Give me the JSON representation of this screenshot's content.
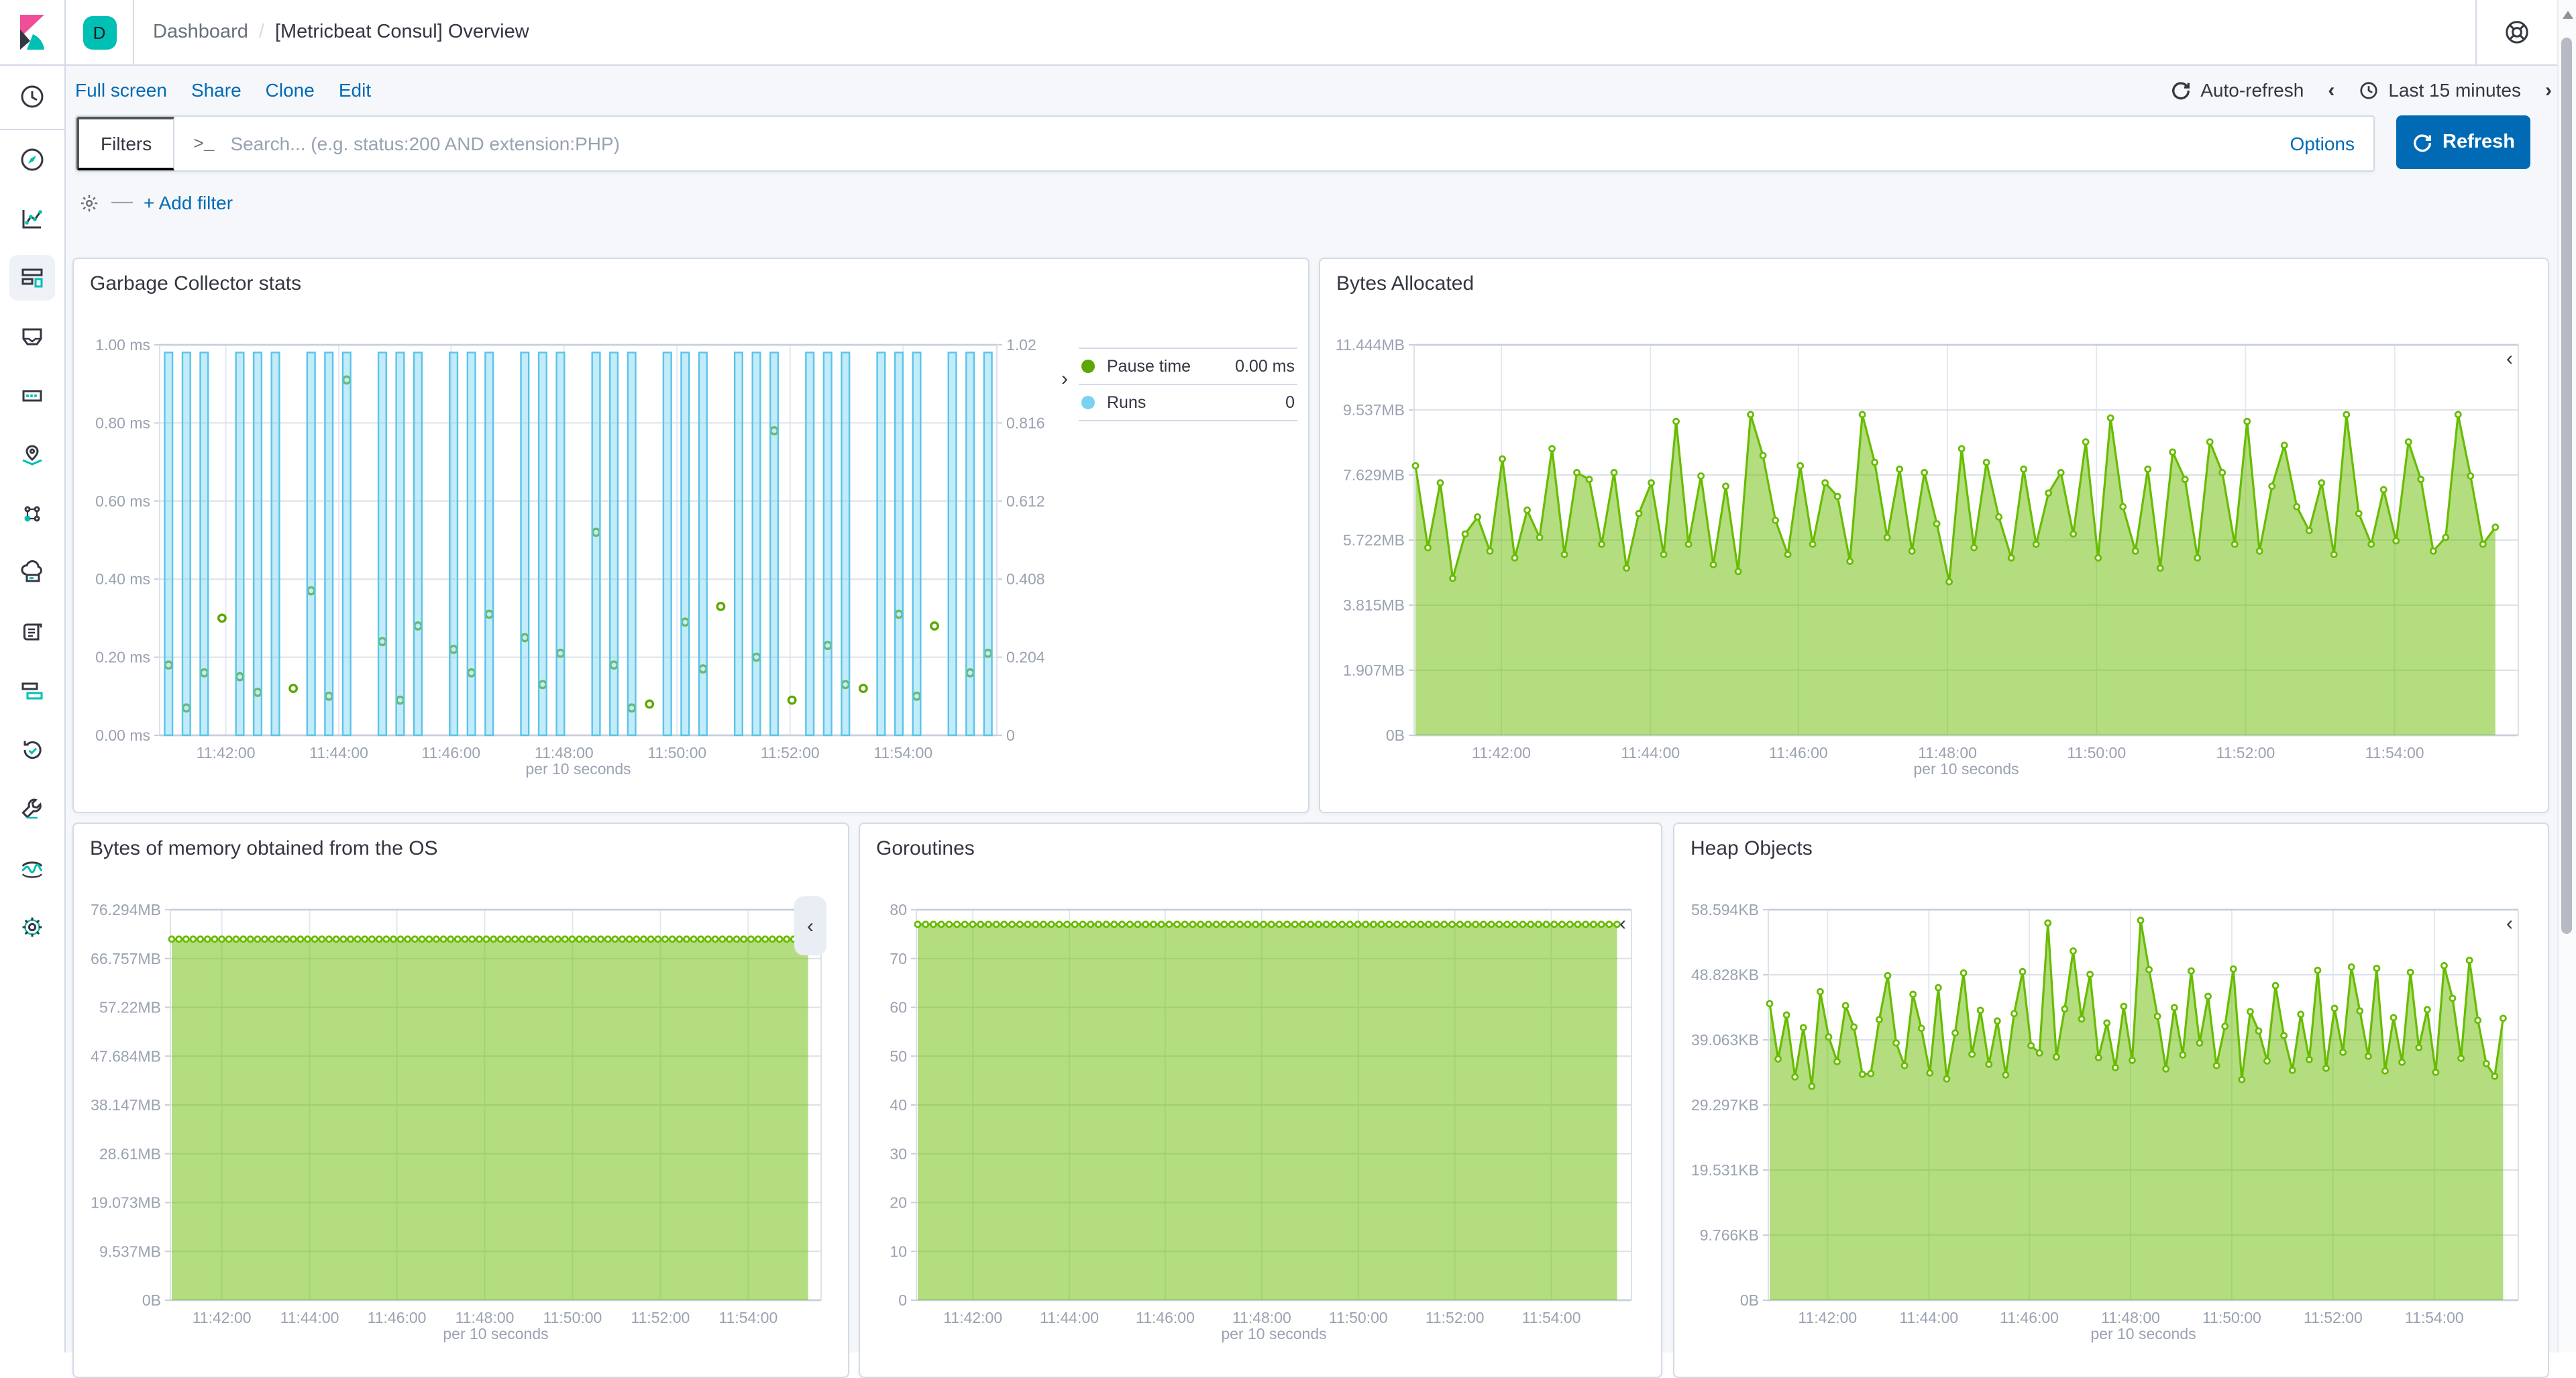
{
  "topbar": {
    "badge": "D",
    "breadcrumb": "Dashboard",
    "separator": "/",
    "title": "[Metricbeat Consul] Overview"
  },
  "sidebar": {
    "active": "dashboard",
    "items": [
      "recently-viewed",
      "discover",
      "visualize",
      "dashboard",
      "canvas",
      "graph",
      "maps",
      "machine-learning",
      "infrastructure",
      "logs",
      "apm",
      "uptime",
      "dev-tools",
      "stack-monitoring",
      "management"
    ]
  },
  "toolbar": {
    "links": {
      "full_screen": "Full screen",
      "share": "Share",
      "clone": "Clone",
      "edit": "Edit"
    },
    "auto_refresh": "Auto-refresh",
    "time_range": "Last 15 minutes"
  },
  "filter_bar": {
    "filters_label": "Filters",
    "prompt": ">_",
    "search_placeholder": "Search... (e.g. status:200 AND extension:PHP)",
    "options_label": "Options",
    "refresh_label": "Refresh",
    "add_filter_label": "+ Add filter"
  },
  "icons": {
    "chevron_left": "‹",
    "chevron_right": "›",
    "dash": "—"
  },
  "colors": {
    "primary": "#006BB4",
    "badge": "#00BFB3",
    "green_line": "#68BC00",
    "green_fill": "rgba(104,188,0,0.5)",
    "green_dot": "#5CA700",
    "blue_bar": "#59C5E8",
    "blue_bar_fill": "rgba(121,210,242,0.45)",
    "blue_dot": "#79D2F2"
  },
  "chart_data": [
    {
      "panel": "garbage-collector-stats",
      "title": "Garbage Collector stats",
      "type": "bar",
      "x_axis_title": "per 10 seconds",
      "pad": [
        56,
        46
      ],
      "x_ticks": [
        {
          "label": "11:42:00",
          "f": 0.079
        },
        {
          "label": "11:44:00",
          "f": 0.214
        },
        {
          "label": "11:46:00",
          "f": 0.348
        },
        {
          "label": "11:48:00",
          "f": 0.483
        },
        {
          "label": "11:50:00",
          "f": 0.618
        },
        {
          "label": "11:52:00",
          "f": 0.753
        },
        {
          "label": "11:54:00",
          "f": 0.888
        }
      ],
      "y_ticks_left": [
        "1.00 ms",
        "0.80 ms",
        "0.60 ms",
        "0.40 ms",
        "0.20 ms",
        "0.00 ms"
      ],
      "y_ticks_right": [
        "1.02",
        "0.816",
        "0.612",
        "0.408",
        "0.204",
        "0"
      ],
      "left_max": 1.0,
      "right_max": 1.02,
      "legend_position": "right",
      "series": [
        {
          "name": "Pause time",
          "type": "scatter",
          "axis": "left",
          "unit": "ms",
          "color": "#5CA700",
          "legend_value": "0.00 ms",
          "values": [
            0.18,
            0.07,
            0.16,
            0.3,
            0.15,
            0.11,
            null,
            0.12,
            0.37,
            0.1,
            0.91,
            null,
            0.24,
            0.09,
            0.28,
            null,
            0.22,
            0.16,
            0.31,
            null,
            0.25,
            0.13,
            0.21,
            null,
            0.52,
            0.18,
            0.07,
            0.08,
            null,
            0.29,
            0.17,
            0.33,
            null,
            0.2,
            0.78,
            0.09,
            null,
            0.23,
            0.13,
            0.12,
            null,
            0.31,
            0.1,
            0.28,
            null,
            0.16,
            0.21
          ]
        },
        {
          "name": "Runs",
          "type": "bar",
          "axis": "right",
          "color": "#59C5E8",
          "fill": "rgba(121,210,242,0.45)",
          "legend_value": "0",
          "value": 1,
          "present": [
            1,
            1,
            1,
            0,
            1,
            1,
            1,
            0,
            1,
            1,
            1,
            0,
            1,
            1,
            1,
            0,
            1,
            1,
            1,
            0,
            1,
            1,
            1,
            0,
            1,
            1,
            1,
            0,
            1,
            1,
            1,
            0,
            1,
            1,
            1,
            0,
            1,
            1,
            1,
            0,
            1,
            1,
            1,
            0,
            1,
            1,
            1
          ]
        }
      ]
    },
    {
      "panel": "bytes-allocated",
      "title": "Bytes Allocated",
      "type": "area",
      "x_axis_title": "per 10 seconds",
      "pad": [
        62,
        14
      ],
      "x_ticks": [
        {
          "label": "11:42:00",
          "f": 0.079
        },
        {
          "label": "11:44:00",
          "f": 0.214
        },
        {
          "label": "11:46:00",
          "f": 0.348
        },
        {
          "label": "11:48:00",
          "f": 0.483
        },
        {
          "label": "11:50:00",
          "f": 0.618
        },
        {
          "label": "11:52:00",
          "f": 0.753
        },
        {
          "label": "11:54:00",
          "f": 0.888
        }
      ],
      "y_ticks_left": [
        "11.444MB",
        "9.537MB",
        "7.629MB",
        "5.722MB",
        "3.815MB",
        "1.907MB",
        "0B"
      ],
      "y_max": 11.444,
      "unit": "MB",
      "series": [
        {
          "name": "Bytes Allocated",
          "type": "area",
          "color": "#68BC00",
          "fill": "rgba(104,188,0,0.5)",
          "values": [
            7.9,
            5.5,
            7.4,
            4.6,
            5.9,
            6.4,
            5.4,
            8.1,
            5.2,
            6.6,
            5.8,
            8.4,
            5.3,
            7.7,
            7.5,
            5.6,
            7.7,
            4.9,
            6.5,
            7.4,
            5.3,
            9.2,
            5.6,
            7.6,
            5.0,
            7.3,
            4.8,
            9.4,
            8.2,
            6.3,
            5.3,
            7.9,
            5.6,
            7.4,
            7.0,
            5.1,
            9.4,
            8.0,
            5.8,
            7.8,
            5.4,
            7.7,
            6.2,
            4.5,
            8.4,
            5.5,
            8.0,
            6.4,
            5.2,
            7.8,
            5.6,
            7.1,
            7.7,
            5.9,
            8.6,
            5.2,
            9.3,
            6.7,
            5.4,
            7.8,
            4.9,
            8.3,
            7.5,
            5.2,
            8.6,
            7.7,
            5.6,
            9.2,
            5.4,
            7.3,
            8.5,
            6.7,
            6.0,
            7.4,
            5.3,
            9.4,
            6.5,
            5.6,
            7.2,
            5.7,
            8.6,
            7.5,
            5.4,
            5.8,
            9.4,
            7.6,
            5.6,
            6.1
          ]
        }
      ]
    },
    {
      "panel": "bytes-of-memory-obtained-from-the-os",
      "title": "Bytes of memory obtained from the OS",
      "type": "area",
      "x_axis_title": "per 10 seconds",
      "pad": [
        64,
        12
      ],
      "x_ticks": [
        {
          "label": "11:42:00",
          "f": 0.079
        },
        {
          "label": "11:44:00",
          "f": 0.214
        },
        {
          "label": "11:46:00",
          "f": 0.348
        },
        {
          "label": "11:48:00",
          "f": 0.483
        },
        {
          "label": "11:50:00",
          "f": 0.618
        },
        {
          "label": "11:52:00",
          "f": 0.753
        },
        {
          "label": "11:54:00",
          "f": 0.888
        }
      ],
      "y_ticks_left": [
        "76.294MB",
        "66.757MB",
        "57.22MB",
        "47.684MB",
        "38.147MB",
        "28.61MB",
        "19.073MB",
        "9.537MB",
        "0B"
      ],
      "y_max": 76.294,
      "unit": "MB",
      "series": [
        {
          "name": "Bytes of memory obtained from the OS",
          "type": "area",
          "color": "#68BC00",
          "fill": "rgba(104,188,0,0.5)",
          "value": 70.55,
          "count": 90
        }
      ]
    },
    {
      "panel": "goroutines",
      "title": "Goroutines",
      "type": "area",
      "x_axis_title": "per 10 seconds",
      "pad": [
        34,
        14
      ],
      "x_ticks": [
        {
          "label": "11:42:00",
          "f": 0.079
        },
        {
          "label": "11:44:00",
          "f": 0.214
        },
        {
          "label": "11:46:00",
          "f": 0.348
        },
        {
          "label": "11:48:00",
          "f": 0.483
        },
        {
          "label": "11:50:00",
          "f": 0.618
        },
        {
          "label": "11:52:00",
          "f": 0.753
        },
        {
          "label": "11:54:00",
          "f": 0.888
        }
      ],
      "y_ticks_left": [
        "80",
        "70",
        "60",
        "50",
        "40",
        "30",
        "20",
        "10",
        "0"
      ],
      "y_max": 80,
      "series": [
        {
          "name": "Goroutines",
          "type": "area",
          "color": "#68BC00",
          "fill": "rgba(104,188,0,0.5)",
          "value": 77,
          "count": 90
        }
      ]
    },
    {
      "panel": "heap-objects",
      "title": "Heap Objects",
      "type": "area",
      "x_axis_title": "per 10 seconds",
      "pad": [
        62,
        14
      ],
      "x_ticks": [
        {
          "label": "11:42:00",
          "f": 0.079
        },
        {
          "label": "11:44:00",
          "f": 0.214
        },
        {
          "label": "11:46:00",
          "f": 0.348
        },
        {
          "label": "11:48:00",
          "f": 0.483
        },
        {
          "label": "11:50:00",
          "f": 0.618
        },
        {
          "label": "11:52:00",
          "f": 0.753
        },
        {
          "label": "11:54:00",
          "f": 0.888
        }
      ],
      "y_ticks_left": [
        "58.594KB",
        "48.828KB",
        "39.063KB",
        "29.297KB",
        "19.531KB",
        "9.766KB",
        "0B"
      ],
      "y_max": 58.594,
      "unit": "KB",
      "series": [
        {
          "name": "Heap Objects",
          "type": "area",
          "color": "#68BC00",
          "fill": "rgba(104,188,0,0.5)",
          "values": [
            44.5,
            36.2,
            42.8,
            33.5,
            40.9,
            32.1,
            46.3,
            39.5,
            35.8,
            44.2,
            41.0,
            33.9,
            34.0,
            42.1,
            48.7,
            38.6,
            35.2,
            45.9,
            40.8,
            34.1,
            46.9,
            33.2,
            40.1,
            49.1,
            36.9,
            43.5,
            35.4,
            41.9,
            33.8,
            43.0,
            49.3,
            38.2,
            37.1,
            56.6,
            36.5,
            43.7,
            52.4,
            42.2,
            48.9,
            36.4,
            41.6,
            34.9,
            44.1,
            36.0,
            57.0,
            49.6,
            42.6,
            34.7,
            43.9,
            36.8,
            49.4,
            38.6,
            45.6,
            35.2,
            41.1,
            49.7,
            33.1,
            43.3,
            40.4,
            35.9,
            47.2,
            39.7,
            34.5,
            42.9,
            36.1,
            49.5,
            34.8,
            43.8,
            37.2,
            50.0,
            43.4,
            36.6,
            49.8,
            34.4,
            42.4,
            35.7,
            49.2,
            37.9,
            43.6,
            34.2,
            50.2,
            45.3,
            36.3,
            51.0,
            42.0,
            35.5,
            33.6,
            42.3
          ]
        }
      ]
    }
  ]
}
